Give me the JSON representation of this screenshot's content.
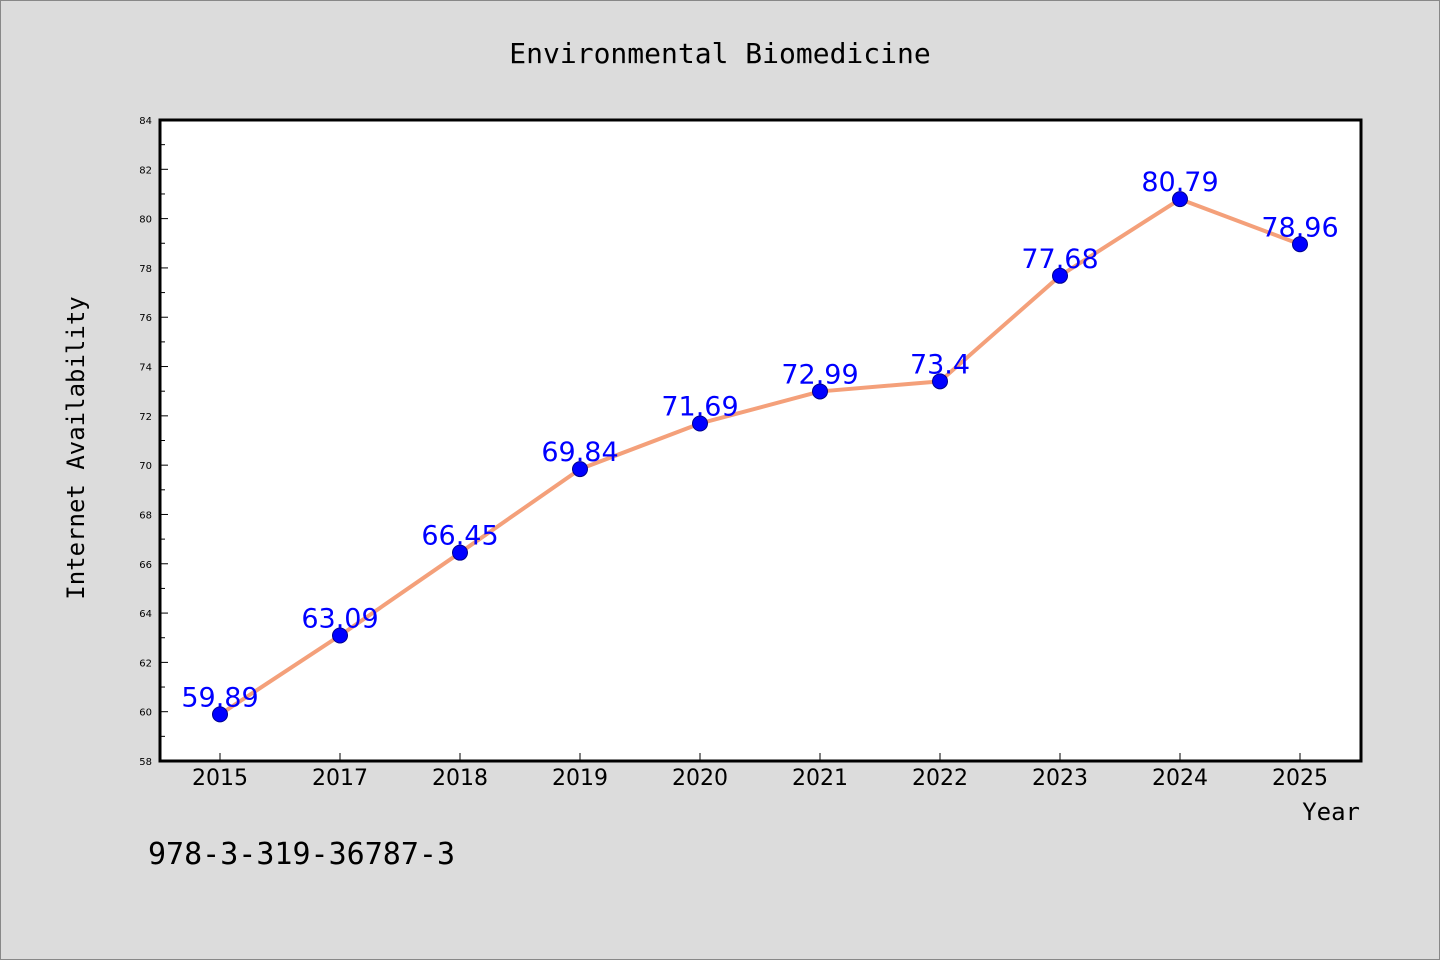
{
  "chart_data": {
    "type": "line",
    "title": "Environmental Biomedicine",
    "xlabel": "Year",
    "ylabel": "Internet Availability",
    "categories": [
      "2015",
      "2017",
      "2018",
      "2019",
      "2020",
      "2021",
      "2022",
      "2023",
      "2024",
      "2025"
    ],
    "series": [
      {
        "values": [
          59.89,
          63.09,
          66.45,
          69.84,
          71.69,
          72.99,
          73.4,
          77.68,
          80.79,
          78.96
        ],
        "labels": [
          "59.89",
          "63.09",
          "66.45",
          "69.84",
          "71.69",
          "72.99",
          "73.4",
          "77.68",
          "80.79",
          "78.96"
        ],
        "line_color": "#f4a07a",
        "marker_color": "#0000ff"
      }
    ],
    "ylim": [
      58,
      84
    ],
    "yticks": [
      "58",
      "60",
      "62",
      "64",
      "66",
      "68",
      "70",
      "72",
      "74",
      "76",
      "78",
      "80",
      "82",
      "84"
    ],
    "grid": false,
    "legend": "none",
    "data_label_color": "#0000ff"
  },
  "footer": {
    "isbn": "978-3-319-36787-3"
  }
}
